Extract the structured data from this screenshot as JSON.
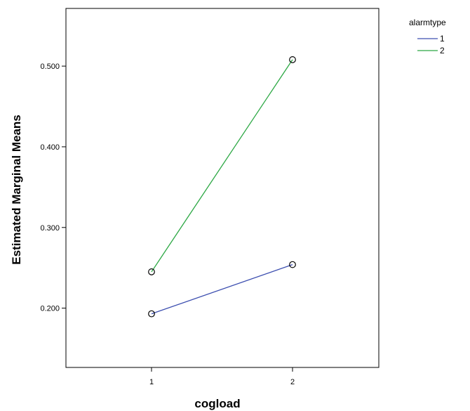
{
  "chart_data": {
    "type": "line",
    "title": "",
    "xlabel": "cogload",
    "ylabel": "Estimated Marginal Means",
    "categories": [
      "1",
      "2"
    ],
    "ylim": [
      0.1265,
      0.5715
    ],
    "yticks": [
      0.2,
      0.3,
      0.4,
      0.5
    ],
    "ytick_labels": [
      "0.200",
      "0.300",
      "0.400",
      "0.500"
    ],
    "legend": {
      "title": "alarmtype",
      "placement": "right, outside plot"
    },
    "series": [
      {
        "name": "1",
        "color": "#3d4fb0",
        "values": [
          0.193,
          0.254
        ]
      },
      {
        "name": "2",
        "color": "#2ca844",
        "values": [
          0.245,
          0.508
        ]
      }
    ],
    "grid": false,
    "markers": "open-circle"
  }
}
